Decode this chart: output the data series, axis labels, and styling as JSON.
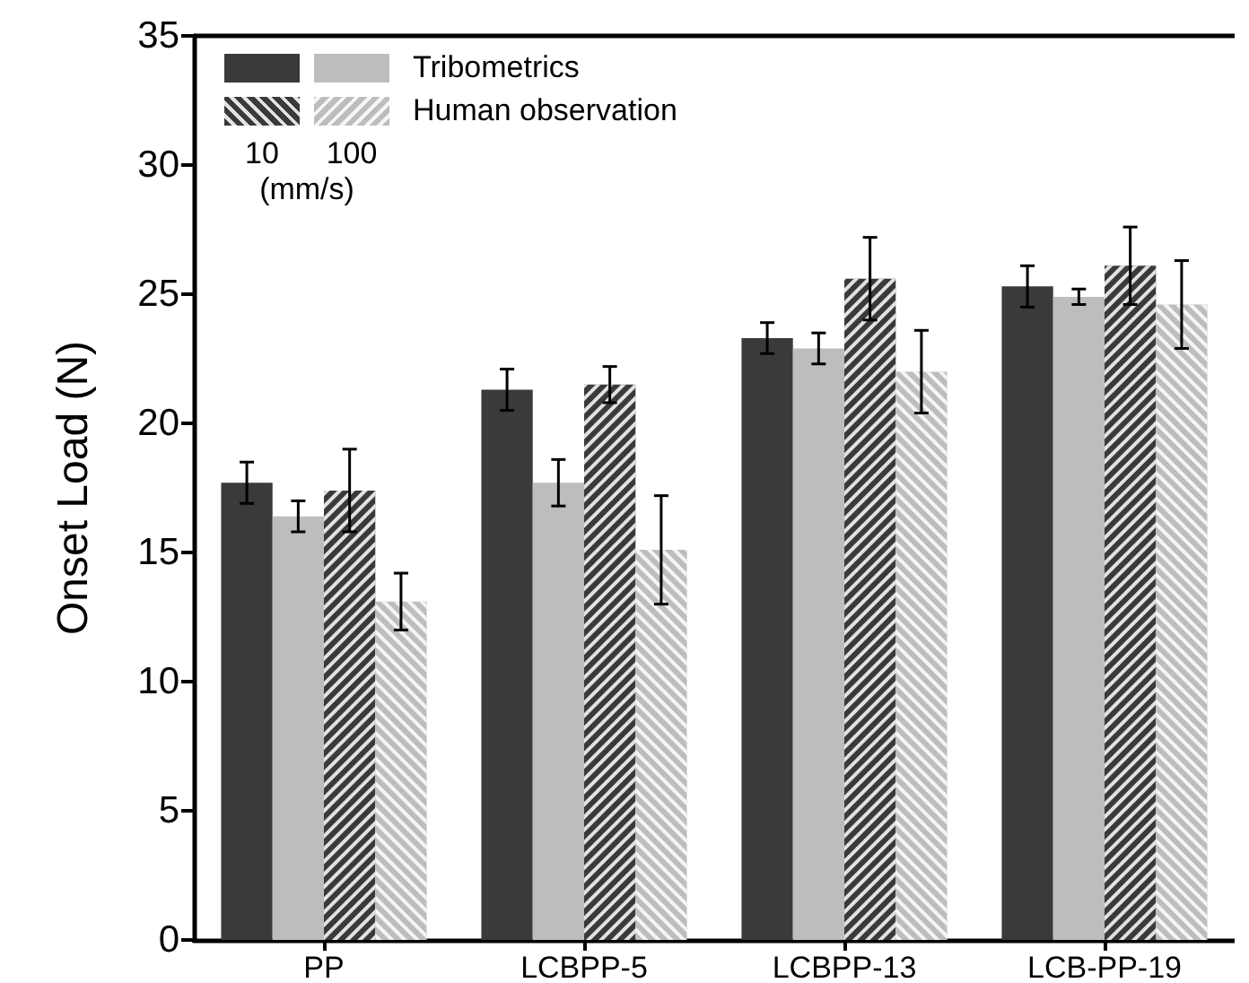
{
  "chart_data": {
    "type": "bar",
    "ylabel": "Onset Load (N)",
    "categories": [
      "PP",
      "LCBPP-5",
      "LCBPP-13",
      "LCB-PP-19"
    ],
    "series": [
      {
        "color": "#3a3a3a",
        "values": [
          17.7,
          21.3,
          23.3,
          25.3
        ],
        "errors": [
          0.8,
          0.8,
          0.6,
          0.8
        ]
      },
      {
        "color": "#bdbdbd",
        "values": [
          16.4,
          17.7,
          22.9,
          24.9
        ],
        "errors": [
          0.6,
          0.9,
          0.6,
          0.3
        ]
      },
      {
        "color": "#3a3a3a",
        "values": [
          17.4,
          21.5,
          25.6,
          26.1
        ],
        "errors": [
          1.6,
          0.7,
          1.6,
          1.5
        ]
      },
      {
        "color": "#bdbdbd",
        "values": [
          13.1,
          15.1,
          22.0,
          24.6
        ],
        "errors": [
          1.1,
          2.1,
          1.6,
          1.7
        ]
      }
    ],
    "ylim": [
      0,
      35
    ],
    "yticks": [
      0,
      5,
      10,
      15,
      20,
      25,
      30,
      35
    ],
    "grid": false,
    "annotations": [
      "Tribometrics",
      "Human observation",
      "10",
      "100",
      "(mm/s)"
    ]
  }
}
